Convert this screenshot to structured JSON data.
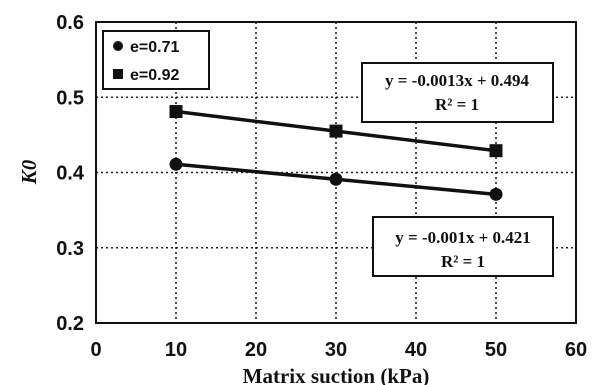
{
  "chart_data": {
    "type": "line",
    "xlabel": "Matrix suction (kPa)",
    "ylabel": "K0",
    "xlim": [
      0,
      60
    ],
    "ylim": [
      0.2,
      0.6
    ],
    "xticks": [
      "0",
      "10",
      "20",
      "30",
      "40",
      "50",
      "60"
    ],
    "yticks": [
      "0.2",
      "0.3",
      "0.4",
      "0.5",
      "0.6"
    ],
    "grid": true,
    "legend_position": "top-left",
    "series": [
      {
        "name": "e=0.71",
        "marker": "circle",
        "color": "#111111",
        "x": [
          10,
          30,
          50
        ],
        "y": [
          0.411,
          0.391,
          0.371
        ],
        "equation": "y = -0.001x + 0.421",
        "r2": "R² = 1"
      },
      {
        "name": "e=0.92",
        "marker": "square",
        "color": "#111111",
        "x": [
          10,
          30,
          50
        ],
        "y": [
          0.481,
          0.455,
          0.429
        ],
        "equation": "y = -0.0013x + 0.494",
        "r2": "R² = 1"
      }
    ]
  }
}
